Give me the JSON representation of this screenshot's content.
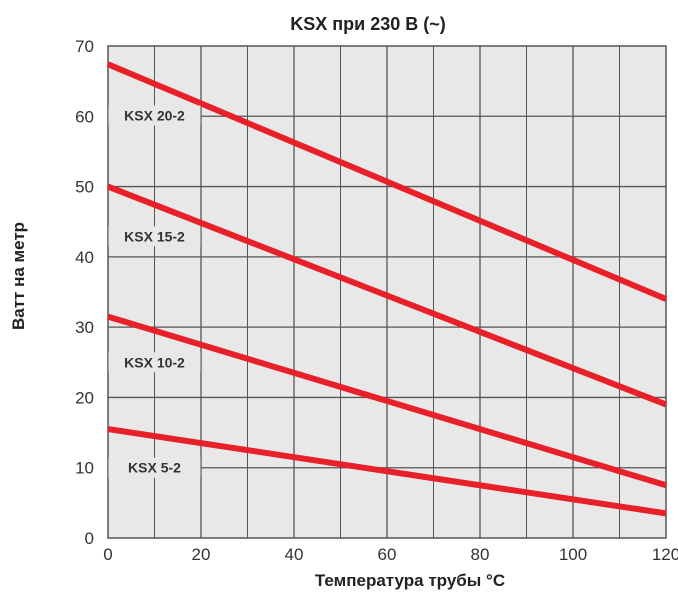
{
  "chart_data": {
    "type": "line",
    "title": "KSX при 230 В (~)",
    "xlabel": "Температура трубы °C",
    "ylabel": "Ватт на метр",
    "xlim": [
      0,
      120
    ],
    "ylim": [
      0,
      70
    ],
    "x_ticks": [
      "0",
      "20",
      "40",
      "60",
      "80",
      "100",
      "120"
    ],
    "y_ticks": [
      "0",
      "10",
      "20",
      "30",
      "40",
      "50",
      "60",
      "70"
    ],
    "grid": true,
    "plot_background": "#e8e8e8",
    "grid_color": "#555555",
    "line_color": "#e8202a",
    "series": [
      {
        "name": "KSX 20-2",
        "label_x": 10,
        "x": [
          0,
          120
        ],
        "y": [
          67.4,
          34.0
        ]
      },
      {
        "name": "KSX 15-2",
        "label_x": 10,
        "x": [
          0,
          120
        ],
        "y": [
          50.0,
          19.0
        ]
      },
      {
        "name": "KSX 10-2",
        "label_x": 10,
        "x": [
          0,
          120
        ],
        "y": [
          31.5,
          7.5
        ]
      },
      {
        "name": "KSX 5-2",
        "label_x": 10,
        "x": [
          0,
          120
        ],
        "y": [
          15.5,
          3.5
        ]
      }
    ]
  }
}
